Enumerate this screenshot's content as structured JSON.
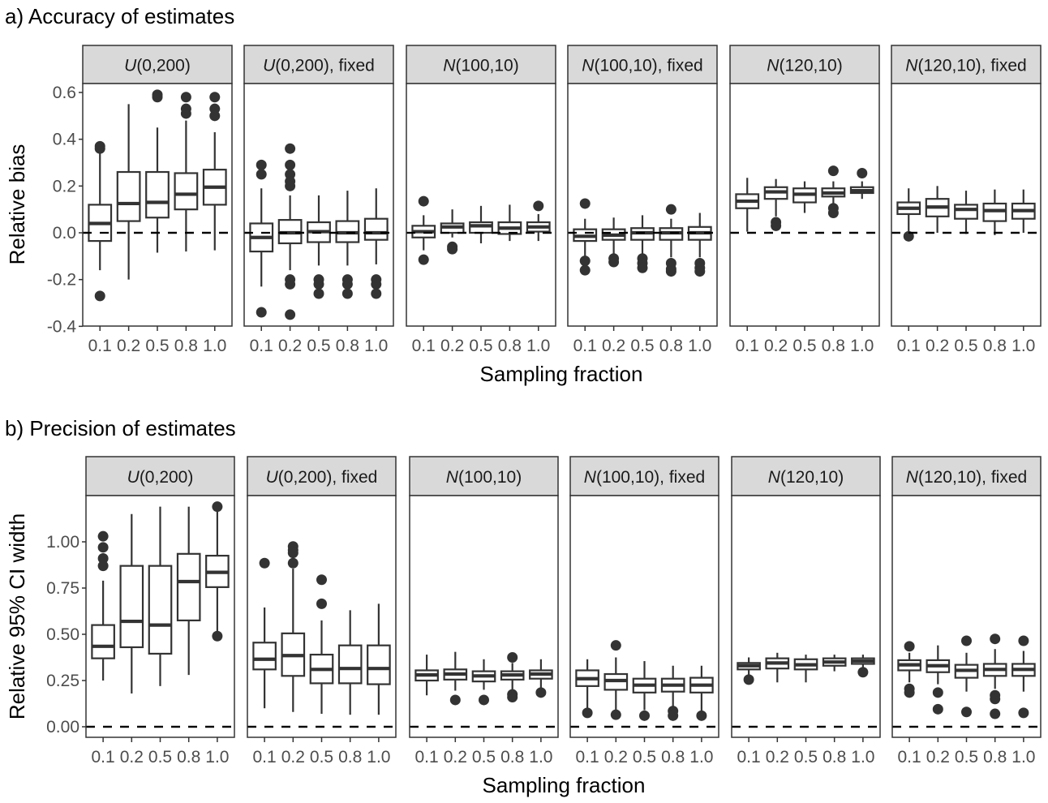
{
  "chart_data": [
    {
      "type": "boxplot",
      "section_title": "a) Accuracy of estimates",
      "xlabel": "Sampling fraction",
      "ylabel": "Relative bias",
      "ylim": [
        -0.4,
        0.63
      ],
      "yticks": [
        -0.4,
        -0.2,
        0.0,
        0.2,
        0.4,
        0.6
      ],
      "ytick_labels": [
        "-0.4",
        "-0.2",
        "0.0",
        "0.2",
        "0.4",
        "0.6"
      ],
      "reference_line": 0.0,
      "categories": [
        "0.1",
        "0.2",
        "0.5",
        "0.8",
        "1.0"
      ],
      "panels": [
        {
          "strip": {
            "italic": "U",
            "rest": "(0,200)"
          },
          "boxes": [
            {
              "lower": -0.16,
              "q1": -0.035,
              "median": 0.04,
              "q3": 0.12,
              "upper": 0.35,
              "outliers": [
                0.37,
                0.36,
                -0.27
              ]
            },
            {
              "lower": -0.2,
              "q1": 0.05,
              "median": 0.125,
              "q3": 0.26,
              "upper": 0.55,
              "outliers": []
            },
            {
              "lower": -0.085,
              "q1": 0.065,
              "median": 0.13,
              "q3": 0.26,
              "upper": 0.45,
              "outliers": [
                0.59,
                0.58
              ]
            },
            {
              "lower": -0.08,
              "q1": 0.1,
              "median": 0.165,
              "q3": 0.255,
              "upper": 0.48,
              "outliers": [
                0.58,
                0.53,
                0.51
              ]
            },
            {
              "lower": -0.075,
              "q1": 0.12,
              "median": 0.195,
              "q3": 0.27,
              "upper": 0.43,
              "outliers": [
                0.58,
                0.53,
                0.5
              ]
            }
          ]
        },
        {
          "strip": {
            "italic": "U",
            "rest": "(0,200), fixed"
          },
          "boxes": [
            {
              "lower": -0.23,
              "q1": -0.08,
              "median": -0.02,
              "q3": 0.04,
              "upper": 0.19,
              "outliers": [
                0.29,
                0.25,
                -0.34
              ]
            },
            {
              "lower": -0.16,
              "q1": -0.045,
              "median": 0.0,
              "q3": 0.055,
              "upper": 0.16,
              "outliers": [
                0.36,
                0.29,
                0.25,
                0.22,
                0.2,
                -0.2,
                -0.22,
                -0.35
              ]
            },
            {
              "lower": -0.14,
              "q1": -0.04,
              "median": 0.005,
              "q3": 0.045,
              "upper": 0.16,
              "outliers": [
                -0.2,
                -0.22,
                -0.26
              ]
            },
            {
              "lower": -0.14,
              "q1": -0.04,
              "median": 0.0,
              "q3": 0.05,
              "upper": 0.18,
              "outliers": [
                -0.2,
                -0.22,
                -0.26
              ]
            },
            {
              "lower": -0.135,
              "q1": -0.03,
              "median": 0.0,
              "q3": 0.06,
              "upper": 0.19,
              "outliers": [
                -0.2,
                -0.22,
                -0.26
              ]
            }
          ]
        },
        {
          "strip": {
            "italic": "N",
            "rest": "(100,10)"
          },
          "boxes": [
            {
              "lower": -0.075,
              "q1": -0.02,
              "median": 0.005,
              "q3": 0.03,
              "upper": 0.075,
              "outliers": [
                0.135,
                -0.115
              ]
            },
            {
              "lower": -0.02,
              "q1": 0.0,
              "median": 0.025,
              "q3": 0.04,
              "upper": 0.1,
              "outliers": [
                -0.06,
                -0.07
              ]
            },
            {
              "lower": -0.045,
              "q1": 0.0,
              "median": 0.03,
              "q3": 0.045,
              "upper": 0.115,
              "outliers": []
            },
            {
              "lower": -0.035,
              "q1": -0.005,
              "median": 0.02,
              "q3": 0.045,
              "upper": 0.12,
              "outliers": []
            },
            {
              "lower": -0.035,
              "q1": 0.005,
              "median": 0.025,
              "q3": 0.045,
              "upper": 0.08,
              "outliers": [
                0.115
              ]
            }
          ]
        },
        {
          "strip": {
            "italic": "N",
            "rest": "(100,10), fixed"
          },
          "boxes": [
            {
              "lower": -0.1,
              "q1": -0.035,
              "median": -0.015,
              "q3": 0.015,
              "upper": 0.06,
              "outliers": [
                0.125,
                -0.12,
                -0.16
              ]
            },
            {
              "lower": -0.1,
              "q1": -0.03,
              "median": -0.01,
              "q3": 0.015,
              "upper": 0.065,
              "outliers": [
                -0.11,
                -0.125
              ]
            },
            {
              "lower": -0.1,
              "q1": -0.03,
              "median": 0.0,
              "q3": 0.02,
              "upper": 0.075,
              "outliers": [
                -0.11,
                -0.13,
                -0.15
              ]
            },
            {
              "lower": -0.105,
              "q1": -0.03,
              "median": 0.0,
              "q3": 0.02,
              "upper": 0.06,
              "outliers": [
                0.1,
                -0.13,
                -0.155,
                -0.165
              ]
            },
            {
              "lower": -0.105,
              "q1": -0.03,
              "median": 0.0,
              "q3": 0.025,
              "upper": 0.085,
              "outliers": [
                -0.13,
                -0.15,
                -0.165
              ]
            }
          ]
        },
        {
          "strip": {
            "italic": "N",
            "rest": "(120,10)"
          },
          "boxes": [
            {
              "lower": 0.005,
              "q1": 0.105,
              "median": 0.135,
              "q3": 0.165,
              "upper": 0.235,
              "outliers": []
            },
            {
              "lower": 0.07,
              "q1": 0.145,
              "median": 0.175,
              "q3": 0.195,
              "upper": 0.23,
              "outliers": [
                0.045,
                0.03
              ]
            },
            {
              "lower": 0.085,
              "q1": 0.13,
              "median": 0.165,
              "q3": 0.19,
              "upper": 0.22,
              "outliers": []
            },
            {
              "lower": 0.115,
              "q1": 0.155,
              "median": 0.17,
              "q3": 0.19,
              "upper": 0.22,
              "outliers": [
                0.265,
                0.105,
                0.085
              ]
            },
            {
              "lower": 0.145,
              "q1": 0.17,
              "median": 0.18,
              "q3": 0.195,
              "upper": 0.22,
              "outliers": [
                0.255
              ]
            }
          ]
        },
        {
          "strip": {
            "italic": "N",
            "rest": "(120,10), fixed"
          },
          "boxes": [
            {
              "lower": 0.005,
              "q1": 0.08,
              "median": 0.105,
              "q3": 0.13,
              "upper": 0.19,
              "outliers": [
                -0.015
              ]
            },
            {
              "lower": 0.0,
              "q1": 0.07,
              "median": 0.11,
              "q3": 0.145,
              "upper": 0.2,
              "outliers": []
            },
            {
              "lower": -0.005,
              "q1": 0.06,
              "median": 0.1,
              "q3": 0.12,
              "upper": 0.18,
              "outliers": []
            },
            {
              "lower": -0.01,
              "q1": 0.05,
              "median": 0.095,
              "q3": 0.125,
              "upper": 0.185,
              "outliers": []
            },
            {
              "lower": 0.0,
              "q1": 0.06,
              "median": 0.095,
              "q3": 0.125,
              "upper": 0.185,
              "outliers": []
            }
          ]
        }
      ]
    },
    {
      "type": "boxplot",
      "section_title": "b) Precision of estimates",
      "xlabel": "Sampling fraction",
      "ylabel": "Relative 95% CI width",
      "ylim": [
        -0.06,
        1.25
      ],
      "yticks": [
        0.0,
        0.25,
        0.5,
        0.75,
        1.0
      ],
      "ytick_labels": [
        "0.00",
        "0.25",
        "0.50",
        "0.75",
        "1.00"
      ],
      "reference_line": 0.0,
      "categories": [
        "0.1",
        "0.2",
        "0.5",
        "0.8",
        "1.0"
      ],
      "panels": [
        {
          "strip": {
            "italic": "U",
            "rest": "(0,200)"
          },
          "boxes": [
            {
              "lower": 0.25,
              "q1": 0.37,
              "median": 0.435,
              "q3": 0.55,
              "upper": 0.79,
              "outliers": [
                1.03,
                0.97,
                0.91,
                0.87
              ]
            },
            {
              "lower": 0.18,
              "q1": 0.43,
              "median": 0.57,
              "q3": 0.87,
              "upper": 1.15,
              "outliers": []
            },
            {
              "lower": 0.22,
              "q1": 0.395,
              "median": 0.55,
              "q3": 0.87,
              "upper": 1.19,
              "outliers": []
            },
            {
              "lower": 0.28,
              "q1": 0.575,
              "median": 0.785,
              "q3": 0.935,
              "upper": 1.19,
              "outliers": []
            },
            {
              "lower": 0.5,
              "q1": 0.755,
              "median": 0.835,
              "q3": 0.925,
              "upper": 1.18,
              "outliers": [
                1.19,
                0.49
              ]
            }
          ]
        },
        {
          "strip": {
            "italic": "U",
            "rest": "(0,200), fixed"
          },
          "boxes": [
            {
              "lower": 0.1,
              "q1": 0.31,
              "median": 0.365,
              "q3": 0.455,
              "upper": 0.645,
              "outliers": [
                0.885
              ]
            },
            {
              "lower": 0.08,
              "q1": 0.275,
              "median": 0.385,
              "q3": 0.505,
              "upper": 0.855,
              "outliers": [
                0.975,
                0.955,
                0.94,
                0.885
              ]
            },
            {
              "lower": 0.07,
              "q1": 0.235,
              "median": 0.31,
              "q3": 0.39,
              "upper": 0.575,
              "outliers": [
                0.795,
                0.665
              ]
            },
            {
              "lower": 0.065,
              "q1": 0.235,
              "median": 0.315,
              "q3": 0.44,
              "upper": 0.63,
              "outliers": []
            },
            {
              "lower": 0.065,
              "q1": 0.23,
              "median": 0.315,
              "q3": 0.44,
              "upper": 0.665,
              "outliers": []
            }
          ]
        },
        {
          "strip": {
            "italic": "N",
            "rest": "(100,10)"
          },
          "boxes": [
            {
              "lower": 0.17,
              "q1": 0.25,
              "median": 0.28,
              "q3": 0.305,
              "upper": 0.39,
              "outliers": []
            },
            {
              "lower": 0.195,
              "q1": 0.255,
              "median": 0.285,
              "q3": 0.31,
              "upper": 0.405,
              "outliers": [
                0.145
              ]
            },
            {
              "lower": 0.2,
              "q1": 0.245,
              "median": 0.275,
              "q3": 0.3,
              "upper": 0.365,
              "outliers": [
                0.145
              ]
            },
            {
              "lower": 0.2,
              "q1": 0.255,
              "median": 0.28,
              "q3": 0.3,
              "upper": 0.345,
              "outliers": [
                0.375,
                0.175,
                0.16
              ]
            },
            {
              "lower": 0.21,
              "q1": 0.26,
              "median": 0.285,
              "q3": 0.305,
              "upper": 0.365,
              "outliers": [
                0.185
              ]
            }
          ]
        },
        {
          "strip": {
            "italic": "N",
            "rest": "(100,10), fixed"
          },
          "boxes": [
            {
              "lower": 0.09,
              "q1": 0.22,
              "median": 0.26,
              "q3": 0.305,
              "upper": 0.365,
              "outliers": [
                0.075
              ]
            },
            {
              "lower": 0.08,
              "q1": 0.2,
              "median": 0.25,
              "q3": 0.285,
              "upper": 0.375,
              "outliers": [
                0.44,
                0.065
              ]
            },
            {
              "lower": 0.09,
              "q1": 0.185,
              "median": 0.225,
              "q3": 0.26,
              "upper": 0.355,
              "outliers": [
                0.06
              ]
            },
            {
              "lower": 0.1,
              "q1": 0.19,
              "median": 0.225,
              "q3": 0.26,
              "upper": 0.33,
              "outliers": [
                0.085,
                0.06
              ]
            },
            {
              "lower": 0.08,
              "q1": 0.185,
              "median": 0.225,
              "q3": 0.265,
              "upper": 0.33,
              "outliers": [
                0.06
              ]
            }
          ]
        },
        {
          "strip": {
            "italic": "N",
            "rest": "(120,10)"
          },
          "boxes": [
            {
              "lower": 0.28,
              "q1": 0.31,
              "median": 0.33,
              "q3": 0.345,
              "upper": 0.375,
              "outliers": [
                0.255
              ]
            },
            {
              "lower": 0.24,
              "q1": 0.315,
              "median": 0.345,
              "q3": 0.37,
              "upper": 0.4,
              "outliers": []
            },
            {
              "lower": 0.24,
              "q1": 0.31,
              "median": 0.335,
              "q3": 0.365,
              "upper": 0.39,
              "outliers": []
            },
            {
              "lower": 0.3,
              "q1": 0.33,
              "median": 0.35,
              "q3": 0.37,
              "upper": 0.39,
              "outliers": []
            },
            {
              "lower": 0.32,
              "q1": 0.34,
              "median": 0.355,
              "q3": 0.37,
              "upper": 0.39,
              "outliers": [
                0.295
              ]
            }
          ]
        },
        {
          "strip": {
            "italic": "N",
            "rest": "(120,10), fixed"
          },
          "boxes": [
            {
              "lower": 0.24,
              "q1": 0.305,
              "median": 0.335,
              "q3": 0.36,
              "upper": 0.4,
              "outliers": [
                0.435,
                0.205,
                0.185
              ]
            },
            {
              "lower": 0.23,
              "q1": 0.295,
              "median": 0.33,
              "q3": 0.36,
              "upper": 0.44,
              "outliers": [
                0.185,
                0.095
              ]
            },
            {
              "lower": 0.19,
              "q1": 0.265,
              "median": 0.305,
              "q3": 0.335,
              "upper": 0.4,
              "outliers": [
                0.465,
                0.08
              ]
            },
            {
              "lower": 0.205,
              "q1": 0.275,
              "median": 0.31,
              "q3": 0.34,
              "upper": 0.42,
              "outliers": [
                0.475,
                0.17,
                0.15,
                0.07
              ]
            },
            {
              "lower": 0.19,
              "q1": 0.275,
              "median": 0.31,
              "q3": 0.34,
              "upper": 0.41,
              "outliers": [
                0.465,
                0.075
              ]
            }
          ]
        }
      ]
    }
  ]
}
